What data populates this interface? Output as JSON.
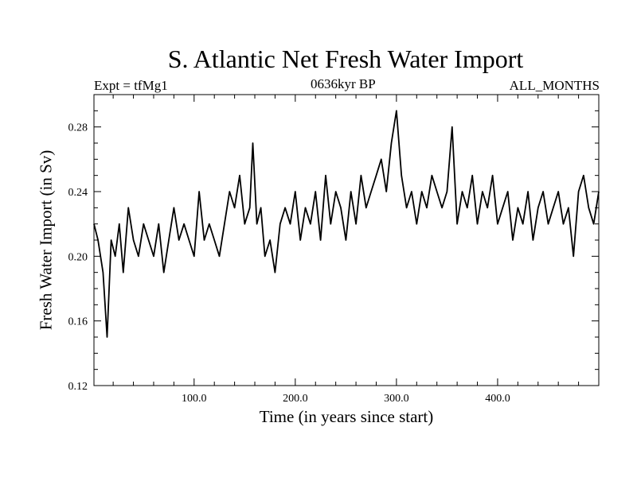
{
  "chart_data": {
    "type": "line",
    "title": "S. Atlantic Net Fresh Water Import",
    "subtitle_left": "Expt = tfMg1",
    "subtitle_center": "0636kyr BP",
    "subtitle_right": "ALL_MONTHS",
    "xlabel": "Time (in years since start)",
    "ylabel": "Fresh Water Import (in Sv)",
    "xlim": [
      1,
      500
    ],
    "ylim": [
      0.12,
      0.3
    ],
    "x_ticks": [
      100,
      200,
      300,
      400
    ],
    "x_tick_labels": [
      "100.0",
      "200.0",
      "300.0",
      "400.0"
    ],
    "y_ticks": [
      0.12,
      0.16,
      0.2,
      0.24,
      0.28
    ],
    "y_tick_labels": [
      "0.12",
      "0.16",
      "0.20",
      "0.24",
      "0.28"
    ],
    "grid": false,
    "series": [
      {
        "color": "#000000",
        "x": [
          1,
          5,
          10,
          14,
          18,
          22,
          26,
          30,
          35,
          40,
          45,
          50,
          55,
          60,
          65,
          70,
          75,
          80,
          85,
          90,
          95,
          100,
          105,
          110,
          115,
          120,
          125,
          130,
          135,
          140,
          145,
          150,
          155,
          158,
          162,
          166,
          170,
          175,
          180,
          185,
          190,
          195,
          200,
          205,
          210,
          215,
          220,
          225,
          230,
          235,
          240,
          245,
          250,
          255,
          260,
          265,
          270,
          275,
          280,
          285,
          290,
          295,
          300,
          305,
          310,
          315,
          320,
          325,
          330,
          335,
          340,
          345,
          350,
          355,
          360,
          365,
          370,
          375,
          380,
          385,
          390,
          395,
          400,
          405,
          410,
          415,
          420,
          425,
          430,
          435,
          440,
          445,
          450,
          455,
          460,
          465,
          470,
          475,
          480,
          485,
          490,
          495,
          500
        ],
        "y": [
          0.22,
          0.21,
          0.19,
          0.15,
          0.21,
          0.2,
          0.22,
          0.19,
          0.23,
          0.21,
          0.2,
          0.22,
          0.21,
          0.2,
          0.22,
          0.19,
          0.21,
          0.23,
          0.21,
          0.22,
          0.21,
          0.2,
          0.24,
          0.21,
          0.22,
          0.21,
          0.2,
          0.22,
          0.24,
          0.23,
          0.25,
          0.22,
          0.23,
          0.27,
          0.22,
          0.23,
          0.2,
          0.21,
          0.19,
          0.22,
          0.23,
          0.22,
          0.24,
          0.21,
          0.23,
          0.22,
          0.24,
          0.21,
          0.25,
          0.22,
          0.24,
          0.23,
          0.21,
          0.24,
          0.22,
          0.25,
          0.23,
          0.24,
          0.25,
          0.26,
          0.24,
          0.27,
          0.29,
          0.25,
          0.23,
          0.24,
          0.22,
          0.24,
          0.23,
          0.25,
          0.24,
          0.23,
          0.24,
          0.28,
          0.22,
          0.24,
          0.23,
          0.25,
          0.22,
          0.24,
          0.23,
          0.25,
          0.22,
          0.23,
          0.24,
          0.21,
          0.23,
          0.22,
          0.24,
          0.21,
          0.23,
          0.24,
          0.22,
          0.23,
          0.24,
          0.22,
          0.23,
          0.2,
          0.24,
          0.25,
          0.23,
          0.22,
          0.24
        ]
      }
    ]
  }
}
